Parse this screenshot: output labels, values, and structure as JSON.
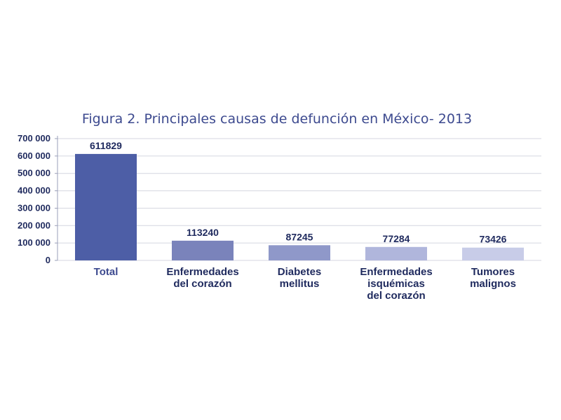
{
  "chart_data": {
    "type": "bar",
    "title": "Figura 2. Principales causas de defunción en México- 2013",
    "categories": [
      [
        "Total"
      ],
      [
        "Enfermedades",
        "del corazón"
      ],
      [
        "Diabetes",
        "mellitus"
      ],
      [
        "Enfermedades",
        "isquémicas",
        "del corazón"
      ],
      [
        "Tumores",
        "malignos"
      ]
    ],
    "values": [
      611829,
      113240,
      87245,
      77284,
      73426
    ],
    "data_labels": [
      "611829",
      "113240",
      "87245",
      "77284",
      "73426"
    ],
    "y_ticks": [
      0,
      100000,
      200000,
      300000,
      400000,
      500000,
      600000,
      700000
    ],
    "y_tick_labels": [
      "0",
      "100 000",
      "200 000",
      "300 000",
      "400 000",
      "500 000",
      "600 000",
      "700 000"
    ],
    "ylim": [
      0,
      700000
    ],
    "grid": true,
    "bar_colors": [
      "#4d5ea6",
      "#7a83bb",
      "#8f98c9",
      "#b0b6dc",
      "#c8cce8"
    ]
  }
}
